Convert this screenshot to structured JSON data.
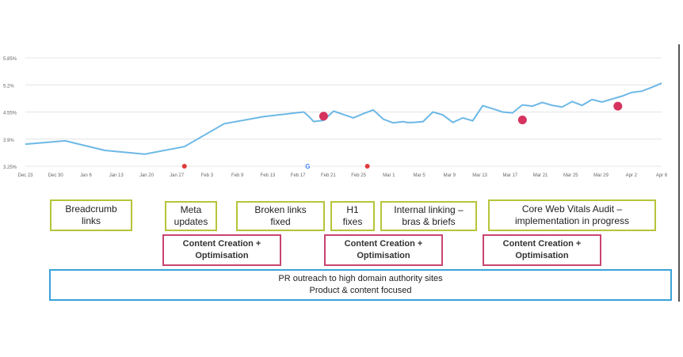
{
  "chart_data": {
    "type": "line",
    "y_ticks": [
      "5.85%",
      "5.2%",
      "4.55%",
      "3.9%",
      "3.25%"
    ],
    "y_tick_values": [
      5.85,
      5.2,
      4.55,
      3.9,
      3.25
    ],
    "ylim": [
      3.25,
      5.85
    ],
    "x_ticks": [
      "Dec 23",
      "Dec 30",
      "Jan 6",
      "Jan 13",
      "Jan 20",
      "Jan 27",
      "Feb 3",
      "Feb 9",
      "Feb 13",
      "Feb 17",
      "Feb 21",
      "Feb 25",
      "Mar 1",
      "Mar 5",
      "Mar 9",
      "Mar 13",
      "Mar 17",
      "Mar 21",
      "Mar 25",
      "Mar 29",
      "Apr 2",
      "Apr 6"
    ],
    "grid": true,
    "line_color": "#6db8e6",
    "series": [
      {
        "x": [
          0,
          2,
          4,
          6,
          8,
          10,
          12,
          14,
          14.2,
          14.5,
          15,
          15.5,
          16,
          16.5,
          17,
          17.5,
          18,
          18.5,
          19,
          19.2,
          19.5,
          20,
          20.5,
          21,
          21.5,
          22,
          22.5,
          23,
          23.5,
          24,
          24.5,
          25,
          25.5,
          26,
          26.5,
          27,
          27.5,
          28,
          28.5,
          29,
          29.5,
          30,
          30.5,
          31,
          31.5,
          32
        ],
        "values": [
          3.78,
          3.86,
          3.63,
          3.54,
          3.72,
          4.27,
          4.44,
          4.55,
          4.47,
          4.32,
          4.35,
          4.57,
          4.49,
          4.41,
          4.51,
          4.6,
          4.38,
          4.29,
          4.32,
          4.3,
          4.3,
          4.32,
          4.55,
          4.48,
          4.3,
          4.41,
          4.34,
          4.7,
          4.63,
          4.55,
          4.53,
          4.72,
          4.69,
          4.78,
          4.71,
          4.67,
          4.8,
          4.71,
          4.85,
          4.79,
          4.86,
          4.93,
          5.02,
          5.05,
          5.14,
          5.24
        ]
      }
    ],
    "events": [
      {
        "x": 15.0,
        "value": 4.45,
        "color": "#d6335f"
      },
      {
        "x": 25.0,
        "value": 4.36,
        "color": "#d6335f"
      },
      {
        "x": 29.8,
        "value": 4.69,
        "color": "#d6335f"
      }
    ],
    "markers": [
      {
        "x": 8.0,
        "color": "#e13a3a",
        "icon": "red-marker-icon"
      },
      {
        "x": 14.2,
        "color": "#4285f4",
        "icon": "google-g-icon"
      },
      {
        "x": 17.2,
        "color": "#e13a3a",
        "icon": "red-marker-icon"
      }
    ]
  },
  "annotations": {
    "green": [
      "Breadcrumb\nlinks",
      "Meta\nupdates",
      "Broken links\nfixed",
      "H1\nfixes",
      "Internal linking –\nbras & briefs",
      "Core Web Vitals Audit –\nimplementation in progress"
    ],
    "pink": [
      "Content Creation +\nOptimisation",
      "Content Creation +\nOptimisation",
      "Content Creation +\nOptimisation"
    ],
    "blue": "PR outreach to high domain authority sites\nProduct & content focused"
  },
  "colors": {
    "green_border": "#b6c43a",
    "pink_border": "#c9446e",
    "blue_border": "#3aa3d8"
  }
}
